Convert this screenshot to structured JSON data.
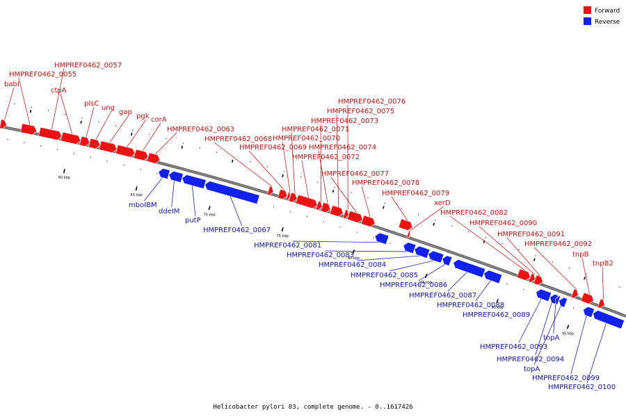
{
  "caption": "Helicobacter pylori 83, complete genome. - 0..1617426",
  "legend": {
    "forward": {
      "label": "Forward",
      "color": "#ee1111"
    },
    "reverse": {
      "label": "Reverse",
      "color": "#1122ee"
    }
  },
  "colors": {
    "backbone": "#888888",
    "forward_leader": "#cc0000",
    "reverse_leader": "#0000cc"
  },
  "scale_marks": [
    {
      "label": "60 kbp"
    },
    {
      "label": "65 kbp"
    },
    {
      "label": "70 kbp"
    },
    {
      "label": "75 kbp"
    },
    {
      "label": "80 kbp"
    },
    {
      "label": "85 kbp"
    },
    {
      "label": "90 kbp"
    },
    {
      "label": "95 kbp"
    }
  ],
  "forward_genes": [
    {
      "label": "babI"
    },
    {
      "label": "HMPREF0462_0055"
    },
    {
      "label": "HMPREF0462_0057"
    },
    {
      "label": "ctpA"
    },
    {
      "label": "plsC"
    },
    {
      "label": "ung"
    },
    {
      "label": "gap"
    },
    {
      "label": "pgk"
    },
    {
      "label": "corA"
    },
    {
      "label": "HMPREF0462_0063"
    },
    {
      "label": "HMPREF0462_0068"
    },
    {
      "label": "HMPREF0462_0069"
    },
    {
      "label": "HMPREF0462_0070"
    },
    {
      "label": "HMPREF0462_0071"
    },
    {
      "label": "HMPREF0462_0072"
    },
    {
      "label": "HMPREF0462_0073"
    },
    {
      "label": "HMPREF0462_0074"
    },
    {
      "label": "HMPREF0462_0075"
    },
    {
      "label": "HMPREF0462_0076"
    },
    {
      "label": "HMPREF0462_0077"
    },
    {
      "label": "HMPREF0462_0078"
    },
    {
      "label": "HMPREF0462_0079"
    },
    {
      "label": "xerD"
    },
    {
      "label": "HMPREF0462_0082"
    },
    {
      "label": "HMPREF0462_0090"
    },
    {
      "label": "HMPREF0462_0091"
    },
    {
      "label": "HMPREF0462_0092"
    },
    {
      "label": "tnpB"
    },
    {
      "label": "tnpB2"
    }
  ],
  "reverse_genes": [
    {
      "label": "mboIBM"
    },
    {
      "label": "ddeIM"
    },
    {
      "label": "putP"
    },
    {
      "label": "HMPREF0462_0067"
    },
    {
      "label": "HMPREF0462_0081"
    },
    {
      "label": "HMPREF0462_0083"
    },
    {
      "label": "HMPREF0462_0084"
    },
    {
      "label": "HMPREF0462_0085"
    },
    {
      "label": "HMPREF0462_0086"
    },
    {
      "label": "HMPREF0462_0087"
    },
    {
      "label": "HMPREF0462_0088"
    },
    {
      "label": "HMPREF0462_0089"
    },
    {
      "label": "HMPREF0462_0093"
    },
    {
      "label": "HMPREF0462_0094"
    },
    {
      "label": "tnpA"
    },
    {
      "label": "topA"
    },
    {
      "label": "HMPREF0462_0099"
    },
    {
      "label": "HMPREF0462_0100"
    }
  ]
}
